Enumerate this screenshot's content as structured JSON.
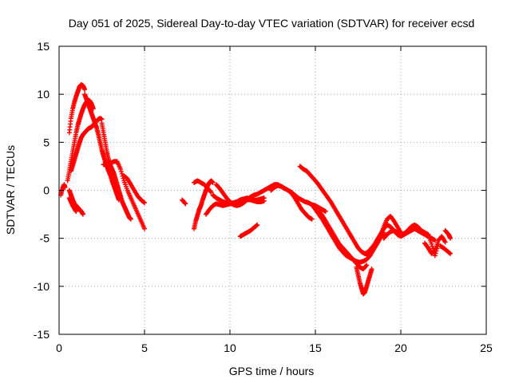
{
  "chart_data": {
    "type": "scatter",
    "title": "Day 051 of 2025, Sidereal Day-to-day VTEC variation (SDTVAR) for receiver ecsd",
    "xlabel": "GPS time / hours",
    "ylabel": "SDTVAR / TECUs",
    "xlim": [
      0,
      25
    ],
    "ylim": [
      -15,
      15
    ],
    "xticks": [
      0,
      5,
      10,
      15,
      20,
      25
    ],
    "yticks": [
      -15,
      -10,
      -5,
      0,
      5,
      10,
      15
    ],
    "xtick_labels": [
      "0",
      "5",
      "10",
      "15",
      "20",
      "25"
    ],
    "ytick_labels": [
      "-15",
      "-10",
      "-5",
      "0",
      "5",
      "10",
      "15"
    ],
    "grid": true,
    "marker": "plus",
    "color": "#ff0000",
    "series": [
      {
        "name": "seg1",
        "x": [
          0.1,
          0.2,
          0.3,
          0.35
        ],
        "y": [
          -0.5,
          0.2,
          0.6,
          0.3
        ]
      },
      {
        "name": "seg2",
        "x": [
          0.6,
          0.7,
          0.8,
          0.9,
          1.0,
          1.1,
          1.2,
          1.3,
          1.4,
          1.5
        ],
        "y": [
          6.0,
          7.5,
          8.5,
          9.2,
          9.8,
          10.3,
          10.8,
          11.0,
          10.9,
          10.5
        ]
      },
      {
        "name": "seg3",
        "x": [
          1.5,
          1.6,
          1.7,
          1.8,
          1.9,
          2.0,
          2.1,
          2.2,
          2.3,
          2.4,
          2.5,
          2.6,
          2.7,
          2.8,
          2.9,
          3.0,
          3.1,
          3.2,
          3.3,
          3.4,
          3.5
        ],
        "y": [
          10.0,
          9.5,
          9.0,
          8.5,
          8.0,
          7.5,
          7.0,
          6.5,
          5.8,
          5.0,
          4.2,
          3.6,
          3.0,
          2.5,
          2.0,
          1.6,
          1.0,
          0.5,
          0.0,
          -0.5,
          -1.0
        ]
      },
      {
        "name": "seg4",
        "x": [
          0.5,
          0.6,
          0.7,
          0.8,
          0.9,
          1.0,
          1.1,
          1.2,
          1.3,
          1.4,
          1.5,
          1.6,
          1.7,
          1.8,
          1.9,
          2.0
        ],
        "y": [
          1.0,
          2.0,
          3.0,
          4.0,
          5.0,
          6.0,
          6.8,
          7.4,
          8.0,
          8.5,
          8.9,
          9.2,
          9.4,
          9.3,
          9.0,
          8.5
        ]
      },
      {
        "name": "seg5",
        "x": [
          0.7,
          0.8,
          0.9,
          1.0,
          1.1,
          1.2,
          1.3,
          1.4,
          1.5,
          1.6,
          1.7,
          1.8,
          1.9,
          2.0,
          2.1,
          2.2,
          2.3,
          2.4,
          2.5
        ],
        "y": [
          2.0,
          2.6,
          3.2,
          3.8,
          4.4,
          5.0,
          5.5,
          5.8,
          6.0,
          6.2,
          6.4,
          6.5,
          6.6,
          6.8,
          7.0,
          7.2,
          7.4,
          7.5,
          7.4
        ]
      },
      {
        "name": "seg6",
        "x": [
          2.5,
          2.6,
          2.7,
          2.8,
          2.9,
          3.0,
          3.1,
          3.2,
          3.3,
          3.4,
          3.5,
          3.6,
          3.7,
          3.8,
          3.9,
          4.0,
          4.1,
          4.2
        ],
        "y": [
          7.0,
          6.0,
          5.0,
          4.0,
          3.2,
          2.6,
          2.2,
          1.8,
          1.2,
          0.6,
          0.0,
          -0.6,
          -1.2,
          -1.6,
          -2.0,
          -2.4,
          -2.8,
          -3.0
        ]
      },
      {
        "name": "seg7",
        "x": [
          2.6,
          2.8,
          3.0,
          3.2,
          3.4,
          3.6,
          3.8,
          4.0,
          4.2,
          4.4,
          4.6,
          4.8,
          5.0
        ],
        "y": [
          2.7,
          2.6,
          2.8,
          3.0,
          3.0,
          2.2,
          1.0,
          0.0,
          -0.8,
          -1.6,
          -2.4,
          -3.2,
          -4.0
        ]
      },
      {
        "name": "seg8",
        "x": [
          3.8,
          4.0,
          4.2,
          4.4,
          4.6,
          4.8,
          5.0
        ],
        "y": [
          1.5,
          1.2,
          0.6,
          0.0,
          -0.6,
          -1.0,
          -1.3
        ]
      },
      {
        "name": "seg9",
        "x": [
          0.6,
          0.7,
          0.8,
          0.9,
          1.0,
          1.1,
          1.2,
          1.3,
          1.4
        ],
        "y": [
          0.0,
          -0.5,
          -1.0,
          -1.4,
          -1.6,
          -1.8,
          -2.0,
          -2.2,
          -2.5
        ]
      },
      {
        "name": "seg10",
        "x": [
          0.6,
          0.7,
          0.8,
          0.9,
          1.0
        ],
        "y": [
          -0.8,
          -1.2,
          -1.6,
          -1.9,
          -2.2
        ]
      },
      {
        "name": "seg11",
        "x": [
          7.2,
          7.4
        ],
        "y": [
          -1.0,
          -1.4
        ]
      },
      {
        "name": "seg12",
        "x": [
          7.9,
          8.0,
          8.1,
          8.2,
          8.3,
          8.4,
          8.5,
          8.6,
          8.7,
          8.8,
          8.9,
          9.0
        ],
        "y": [
          -4.0,
          -3.2,
          -2.6,
          -2.0,
          -1.6,
          -1.0,
          -0.5,
          0.0,
          0.5,
          0.8,
          1.0,
          0.8
        ]
      },
      {
        "name": "seg13",
        "x": [
          7.9,
          8.1,
          8.3,
          8.5,
          8.7,
          8.9
        ],
        "y": [
          0.8,
          1.0,
          0.8,
          0.6,
          0.2,
          -0.2
        ]
      },
      {
        "name": "seg14",
        "x": [
          8.6,
          8.8,
          9.0,
          9.2,
          9.4,
          9.6,
          9.8,
          10.0,
          10.2,
          10.4,
          10.6,
          10.8,
          11.0,
          11.2,
          11.4,
          11.6,
          11.8,
          12.0
        ],
        "y": [
          -2.5,
          -2.0,
          -1.6,
          -1.4,
          -1.5,
          -1.6,
          -1.5,
          -1.4,
          -1.3,
          -1.2,
          -1.0,
          -0.9,
          -0.8,
          -0.9,
          -1.0,
          -1.0,
          -0.9,
          -0.8
        ]
      },
      {
        "name": "seg15",
        "x": [
          9.2,
          9.4,
          9.6,
          9.8,
          10.0,
          10.2,
          10.4,
          10.6,
          10.8,
          11.0,
          11.2,
          11.4,
          11.6,
          11.8,
          12.0,
          12.2,
          12.4,
          12.6,
          12.8,
          13.0,
          13.2,
          13.4,
          13.6,
          13.8,
          14.0,
          14.2,
          14.4,
          14.6,
          14.8
        ],
        "y": [
          0.6,
          0.2,
          -0.3,
          -0.8,
          -1.2,
          -1.5,
          -1.6,
          -1.5,
          -1.3,
          -1.0,
          -0.7,
          -0.5,
          -0.4,
          -0.2,
          0.0,
          0.2,
          0.4,
          0.6,
          0.6,
          0.4,
          0.2,
          0.0,
          -0.3,
          -0.8,
          -1.4,
          -2.0,
          -2.4,
          -2.8,
          -3.0
        ]
      },
      {
        "name": "seg16",
        "x": [
          9.0,
          9.2,
          9.4,
          9.6,
          9.8,
          10.0,
          10.2,
          10.4,
          10.6,
          10.8,
          11.0,
          11.2,
          11.4,
          11.6,
          11.8,
          12.0
        ],
        "y": [
          -0.5,
          -0.8,
          -1.0,
          -1.2,
          -1.3,
          -1.4,
          -1.4,
          -1.3,
          -1.2,
          -1.1,
          -1.0,
          -1.0,
          -1.1,
          -1.2,
          -1.2,
          -1.1
        ]
      },
      {
        "name": "seg17",
        "x": [
          10.6,
          10.8,
          11.0,
          11.2,
          11.4,
          11.6
        ],
        "y": [
          -4.8,
          -4.6,
          -4.4,
          -4.2,
          -3.9,
          -3.6
        ]
      },
      {
        "name": "seg18",
        "x": [
          12.4,
          12.6,
          12.8,
          13.0,
          13.2,
          13.4,
          13.6,
          13.8,
          14.0,
          14.2,
          14.4,
          14.6,
          14.8,
          15.0,
          15.2,
          15.4,
          15.6
        ],
        "y": [
          0.0,
          0.3,
          0.5,
          0.4,
          0.2,
          0.0,
          -0.2,
          -0.5,
          -0.8,
          -1.0,
          -1.2,
          -1.3,
          -1.5,
          -1.6,
          -1.8,
          -2.0,
          -2.2
        ]
      },
      {
        "name": "seg19",
        "x": [
          14.1,
          14.3,
          14.5,
          14.7,
          14.9,
          15.1,
          15.3,
          15.5,
          15.7,
          15.9,
          16.1,
          16.3,
          16.5,
          16.7,
          16.9,
          17.1,
          17.3,
          17.5,
          17.7,
          17.9,
          18.1,
          18.3,
          18.5
        ],
        "y": [
          2.5,
          2.2,
          2.0,
          1.6,
          1.2,
          0.8,
          0.3,
          -0.2,
          -0.7,
          -1.2,
          -1.8,
          -2.4,
          -3.0,
          -3.6,
          -4.2,
          -4.8,
          -5.4,
          -6.0,
          -6.4,
          -6.6,
          -6.4,
          -6.0,
          -5.6
        ]
      },
      {
        "name": "seg20",
        "x": [
          14.8,
          15.0,
          15.2,
          15.4,
          15.6,
          15.8,
          16.0,
          16.2,
          16.4,
          16.6,
          16.8,
          17.0,
          17.2,
          17.4,
          17.6,
          17.8,
          18.0,
          18.2,
          18.4,
          18.6,
          18.8,
          19.0
        ],
        "y": [
          -1.5,
          -2.0,
          -2.5,
          -3.0,
          -3.6,
          -4.2,
          -4.8,
          -5.4,
          -6.0,
          -6.4,
          -6.8,
          -7.0,
          -7.2,
          -7.4,
          -7.5,
          -7.4,
          -7.2,
          -6.8,
          -6.2,
          -5.6,
          -5.0,
          -4.4
        ]
      },
      {
        "name": "seg21",
        "x": [
          15.2,
          15.4,
          15.6,
          15.8,
          16.0,
          16.2,
          16.4,
          16.6,
          16.8,
          17.0,
          17.2,
          17.4,
          17.6,
          17.8,
          18.0
        ],
        "y": [
          -2.2,
          -2.6,
          -3.2,
          -3.8,
          -4.4,
          -5.0,
          -5.6,
          -6.0,
          -6.4,
          -6.8,
          -7.2,
          -7.6,
          -8.0,
          -8.2,
          -7.8
        ]
      },
      {
        "name": "seg22",
        "x": [
          17.4,
          17.5,
          17.6,
          17.7,
          17.8,
          17.9,
          18.0,
          18.1,
          18.2,
          18.3
        ],
        "y": [
          -8.0,
          -8.8,
          -9.6,
          -10.2,
          -10.8,
          -10.6,
          -10.0,
          -9.4,
          -8.8,
          -8.2
        ]
      },
      {
        "name": "seg23",
        "x": [
          18.0,
          18.2,
          18.4,
          18.6,
          18.8,
          19.0,
          19.2,
          19.4,
          19.6,
          19.8,
          20.0,
          20.2,
          20.4,
          20.6,
          20.8,
          21.0,
          21.2,
          21.4,
          21.6,
          21.8,
          22.0
        ],
        "y": [
          -6.8,
          -6.2,
          -5.8,
          -5.2,
          -4.6,
          -4.0,
          -3.6,
          -3.8,
          -4.2,
          -4.6,
          -4.8,
          -4.6,
          -4.4,
          -4.2,
          -4.0,
          -4.2,
          -4.4,
          -4.6,
          -4.8,
          -5.0,
          -5.2
        ]
      },
      {
        "name": "seg24",
        "x": [
          18.6,
          18.8,
          19.0,
          19.2,
          19.4,
          19.6,
          19.8,
          20.0
        ],
        "y": [
          -5.4,
          -4.8,
          -3.8,
          -3.0,
          -2.7,
          -3.2,
          -3.8,
          -4.4
        ]
      },
      {
        "name": "seg25",
        "x": [
          19.0,
          19.2,
          19.4,
          19.6,
          19.8,
          20.0,
          20.2,
          20.4,
          20.6,
          20.8,
          21.0,
          21.2,
          21.4,
          21.6
        ],
        "y": [
          -5.0,
          -4.6,
          -4.3,
          -4.2,
          -4.4,
          -4.6,
          -4.5,
          -4.2,
          -3.8,
          -3.6,
          -3.8,
          -4.2,
          -4.4,
          -4.6
        ]
      },
      {
        "name": "seg26",
        "x": [
          21.4,
          21.6,
          21.8,
          22.0,
          22.2,
          22.4,
          22.6
        ],
        "y": [
          -5.5,
          -6.0,
          -6.6,
          -6.2,
          -5.2,
          -4.8,
          -5.4
        ]
      },
      {
        "name": "seg27",
        "x": [
          21.6,
          21.8,
          22.0,
          22.2
        ],
        "y": [
          -4.6,
          -5.6,
          -6.8,
          -5.6
        ]
      },
      {
        "name": "seg28",
        "x": [
          22.3,
          22.5,
          22.7,
          22.9
        ],
        "y": [
          -5.8,
          -6.0,
          -6.3,
          -6.6
        ]
      },
      {
        "name": "seg29",
        "x": [
          22.6,
          22.8,
          22.9
        ],
        "y": [
          -4.2,
          -4.6,
          -5.0
        ]
      }
    ]
  }
}
